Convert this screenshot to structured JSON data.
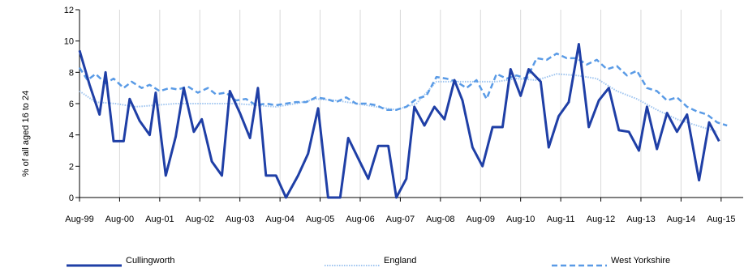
{
  "chart_data": {
    "type": "line",
    "title": "",
    "xlabel": "",
    "ylabel": "% of all aged 16 to 24",
    "ylim": [
      0,
      12
    ],
    "yticks": [
      0,
      2,
      4,
      6,
      8,
      10,
      12
    ],
    "x_tick_labels": [
      "Aug-99",
      "Aug-00",
      "Aug-01",
      "Aug-02",
      "Aug-03",
      "Aug-04",
      "Aug-05",
      "Aug-06",
      "Aug-07",
      "Aug-08",
      "Aug-09",
      "Aug-10",
      "Aug-11",
      "Aug-12",
      "Aug-13",
      "Aug-14",
      "Aug-15"
    ],
    "grid": "vertical",
    "legend_position": "bottom",
    "series": [
      {
        "name": "Cullingworth",
        "color": "#1f3fa6",
        "style": "solid-thick",
        "points": [
          [
            1999.6,
            9.4
          ],
          [
            1999.85,
            7.2
          ],
          [
            2000.1,
            5.3
          ],
          [
            2000.25,
            8.0
          ],
          [
            2000.45,
            3.6
          ],
          [
            2000.7,
            3.6
          ],
          [
            2000.85,
            6.3
          ],
          [
            2001.1,
            4.9
          ],
          [
            2001.35,
            4.0
          ],
          [
            2001.5,
            6.7
          ],
          [
            2001.75,
            1.4
          ],
          [
            2002.0,
            3.9
          ],
          [
            2002.2,
            7.0
          ],
          [
            2002.45,
            4.2
          ],
          [
            2002.65,
            5.0
          ],
          [
            2002.9,
            2.3
          ],
          [
            2003.15,
            1.4
          ],
          [
            2003.35,
            6.8
          ],
          [
            2003.6,
            5.4
          ],
          [
            2003.85,
            3.8
          ],
          [
            2004.05,
            7.0
          ],
          [
            2004.25,
            1.4
          ],
          [
            2004.5,
            1.4
          ],
          [
            2004.75,
            0.0
          ],
          [
            2005.05,
            1.4
          ],
          [
            2005.3,
            2.8
          ],
          [
            2005.55,
            5.7
          ],
          [
            2005.8,
            0.0
          ],
          [
            2006.1,
            0.0
          ],
          [
            2006.3,
            3.8
          ],
          [
            2006.55,
            2.5
          ],
          [
            2006.8,
            1.2
          ],
          [
            2007.05,
            3.3
          ],
          [
            2007.3,
            3.3
          ],
          [
            2007.5,
            0.0
          ],
          [
            2007.75,
            1.2
          ],
          [
            2007.95,
            5.8
          ],
          [
            2008.2,
            4.6
          ],
          [
            2008.45,
            5.8
          ],
          [
            2008.7,
            5.0
          ],
          [
            2008.95,
            7.5
          ],
          [
            2009.15,
            6.2
          ],
          [
            2009.4,
            3.2
          ],
          [
            2009.65,
            2.0
          ],
          [
            2009.9,
            4.5
          ],
          [
            2010.15,
            4.5
          ],
          [
            2010.35,
            8.2
          ],
          [
            2010.6,
            6.5
          ],
          [
            2010.8,
            8.2
          ],
          [
            2011.1,
            7.4
          ],
          [
            2011.3,
            3.2
          ],
          [
            2011.55,
            5.2
          ],
          [
            2011.8,
            6.1
          ],
          [
            2012.05,
            9.8
          ],
          [
            2012.3,
            4.5
          ],
          [
            2012.55,
            6.2
          ],
          [
            2012.8,
            7.0
          ],
          [
            2013.05,
            4.3
          ],
          [
            2013.3,
            4.2
          ],
          [
            2013.55,
            3.0
          ],
          [
            2013.75,
            5.8
          ],
          [
            2014.0,
            3.1
          ],
          [
            2014.25,
            5.4
          ],
          [
            2014.5,
            4.2
          ],
          [
            2014.75,
            5.3
          ],
          [
            2015.05,
            1.1
          ],
          [
            2015.3,
            4.8
          ],
          [
            2015.55,
            3.6
          ]
        ]
      },
      {
        "name": "England",
        "color": "#9fc5f0",
        "style": "dotted",
        "points": [
          [
            1999.6,
            6.8
          ],
          [
            2000.0,
            6.1
          ],
          [
            2000.5,
            6.0
          ],
          [
            2001.0,
            5.8
          ],
          [
            2001.5,
            5.9
          ],
          [
            2002.0,
            6.0
          ],
          [
            2002.5,
            6.0
          ],
          [
            2003.0,
            6.0
          ],
          [
            2003.5,
            6.0
          ],
          [
            2004.0,
            5.9
          ],
          [
            2004.5,
            5.8
          ],
          [
            2005.0,
            6.0
          ],
          [
            2005.5,
            6.3
          ],
          [
            2006.0,
            6.2
          ],
          [
            2006.5,
            6.0
          ],
          [
            2007.0,
            5.8
          ],
          [
            2007.5,
            5.6
          ],
          [
            2008.0,
            6.0
          ],
          [
            2008.5,
            7.4
          ],
          [
            2009.0,
            7.4
          ],
          [
            2009.5,
            7.4
          ],
          [
            2010.0,
            7.4
          ],
          [
            2010.5,
            7.6
          ],
          [
            2011.0,
            7.5
          ],
          [
            2011.5,
            7.9
          ],
          [
            2012.0,
            7.8
          ],
          [
            2012.5,
            7.6
          ],
          [
            2013.0,
            6.8
          ],
          [
            2013.5,
            6.3
          ],
          [
            2014.0,
            5.6
          ],
          [
            2014.5,
            5.0
          ],
          [
            2015.0,
            4.6
          ],
          [
            2015.5,
            4.2
          ]
        ]
      },
      {
        "name": "West Yorkshire",
        "color": "#5a9be6",
        "style": "dashed",
        "points": [
          [
            1999.6,
            8.3
          ],
          [
            1999.8,
            7.5
          ],
          [
            2000.0,
            7.9
          ],
          [
            2000.25,
            7.3
          ],
          [
            2000.45,
            7.6
          ],
          [
            2000.7,
            7.0
          ],
          [
            2000.9,
            7.4
          ],
          [
            2001.15,
            7.0
          ],
          [
            2001.35,
            7.2
          ],
          [
            2001.6,
            6.8
          ],
          [
            2001.85,
            7.0
          ],
          [
            2002.05,
            6.9
          ],
          [
            2002.3,
            7.1
          ],
          [
            2002.55,
            6.7
          ],
          [
            2002.8,
            7.0
          ],
          [
            2003.0,
            6.6
          ],
          [
            2003.25,
            6.7
          ],
          [
            2003.5,
            6.2
          ],
          [
            2003.75,
            6.3
          ],
          [
            2004.0,
            5.9
          ],
          [
            2004.25,
            6.0
          ],
          [
            2004.5,
            5.9
          ],
          [
            2004.75,
            6.0
          ],
          [
            2005.0,
            6.1
          ],
          [
            2005.25,
            6.1
          ],
          [
            2005.5,
            6.4
          ],
          [
            2005.75,
            6.3
          ],
          [
            2006.0,
            6.1
          ],
          [
            2006.25,
            6.4
          ],
          [
            2006.5,
            6.0
          ],
          [
            2006.75,
            6.0
          ],
          [
            2007.0,
            5.9
          ],
          [
            2007.25,
            5.6
          ],
          [
            2007.5,
            5.6
          ],
          [
            2007.75,
            5.8
          ],
          [
            2008.0,
            6.3
          ],
          [
            2008.25,
            6.5
          ],
          [
            2008.5,
            7.7
          ],
          [
            2008.75,
            7.6
          ],
          [
            2009.0,
            7.4
          ],
          [
            2009.25,
            7.0
          ],
          [
            2009.5,
            7.5
          ],
          [
            2009.75,
            6.3
          ],
          [
            2010.0,
            7.9
          ],
          [
            2010.25,
            7.6
          ],
          [
            2010.5,
            7.8
          ],
          [
            2010.75,
            7.6
          ],
          [
            2011.0,
            8.9
          ],
          [
            2011.25,
            8.8
          ],
          [
            2011.5,
            9.2
          ],
          [
            2011.75,
            8.9
          ],
          [
            2012.0,
            8.9
          ],
          [
            2012.25,
            8.5
          ],
          [
            2012.5,
            8.8
          ],
          [
            2012.75,
            8.2
          ],
          [
            2013.0,
            8.4
          ],
          [
            2013.25,
            7.8
          ],
          [
            2013.5,
            8.1
          ],
          [
            2013.75,
            7.0
          ],
          [
            2014.0,
            6.8
          ],
          [
            2014.25,
            6.2
          ],
          [
            2014.5,
            6.4
          ],
          [
            2014.75,
            5.8
          ],
          [
            2015.0,
            5.5
          ],
          [
            2015.25,
            5.3
          ],
          [
            2015.5,
            4.8
          ],
          [
            2015.75,
            4.6
          ]
        ]
      }
    ]
  }
}
